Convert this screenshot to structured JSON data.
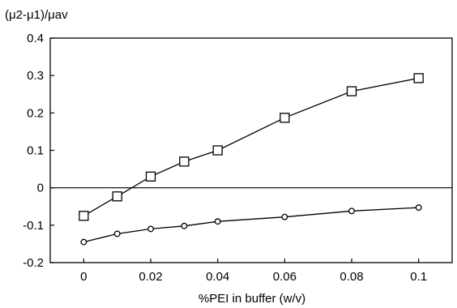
{
  "chart_data": {
    "type": "line",
    "title": "",
    "xlabel": "%PEI in buffer (w/v)",
    "ylabel": "(μ2-μ1)/μav",
    "xlim": [
      -0.01,
      0.11
    ],
    "ylim": [
      -0.2,
      0.4
    ],
    "x_ticks": [
      0,
      0.02,
      0.04,
      0.06,
      0.08,
      0.1
    ],
    "x_tick_labels": [
      "0",
      "0.02",
      "0.04",
      "0.06",
      "0.08",
      "0.1"
    ],
    "y_ticks": [
      -0.2,
      -0.1,
      0,
      0.1,
      0.2,
      0.3,
      0.4
    ],
    "y_tick_labels": [
      "-0.2",
      "-0.1",
      "0",
      "0.1",
      "0.2",
      "0.3",
      "0.4"
    ],
    "zero_line": true,
    "grid": false,
    "legend": "none",
    "series": [
      {
        "marker": "square",
        "color": "#000000",
        "x": [
          0,
          0.01,
          0.02,
          0.03,
          0.04,
          0.06,
          0.08,
          0.1
        ],
        "y": [
          -0.075,
          -0.023,
          0.03,
          0.07,
          0.1,
          0.187,
          0.258,
          0.293
        ]
      },
      {
        "marker": "circle",
        "color": "#000000",
        "x": [
          0,
          0.01,
          0.02,
          0.03,
          0.04,
          0.06,
          0.08,
          0.1
        ],
        "y": [
          -0.145,
          -0.123,
          -0.11,
          -0.102,
          -0.09,
          -0.078,
          -0.062,
          -0.053
        ]
      }
    ]
  }
}
